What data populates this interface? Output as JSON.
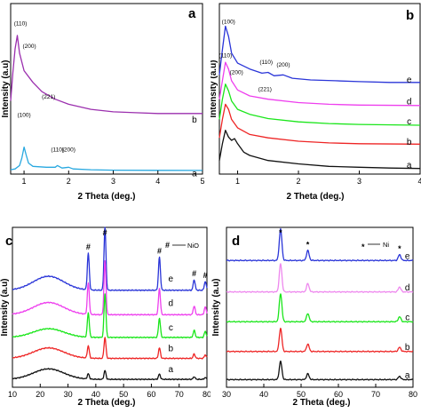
{
  "chart_data": [
    {
      "panel": "a",
      "type": "line",
      "xlabel": "2 Theta (deg.)",
      "ylabel": "Intensity (a.u)",
      "xlim": [
        0.7,
        5
      ],
      "xticks": [
        "1",
        "2",
        "3",
        "4",
        "5"
      ],
      "series": [
        {
          "name": "b",
          "color": "#9b2fae",
          "offset": 66,
          "points": [
            [
              0.7,
              18
            ],
            [
              0.75,
              52
            ],
            [
              0.8,
              80
            ],
            [
              0.85,
              96
            ],
            [
              0.9,
              75
            ],
            [
              1.0,
              54
            ],
            [
              1.2,
              40
            ],
            [
              1.4,
              29
            ],
            [
              1.7,
              20
            ],
            [
              2.0,
              14
            ],
            [
              2.5,
              8
            ],
            [
              3.0,
              5
            ],
            [
              3.5,
              4
            ],
            [
              4.0,
              3
            ],
            [
              4.5,
              3
            ],
            [
              5.0,
              3
            ]
          ]
        },
        {
          "name": "a",
          "color": "#28a8e0",
          "offset": 1,
          "points": [
            [
              0.7,
              1
            ],
            [
              0.8,
              2
            ],
            [
              0.9,
              6
            ],
            [
              0.95,
              15
            ],
            [
              1.0,
              28
            ],
            [
              1.05,
              18
            ],
            [
              1.1,
              9
            ],
            [
              1.2,
              5
            ],
            [
              1.5,
              4
            ],
            [
              1.7,
              4
            ],
            [
              1.75,
              6
            ],
            [
              1.85,
              3
            ],
            [
              2.0,
              4
            ],
            [
              2.1,
              2
            ],
            [
              2.5,
              1
            ],
            [
              3.0,
              0.5
            ],
            [
              4.0,
              0.3
            ],
            [
              5.0,
              0.2
            ]
          ]
        }
      ],
      "peaks": [
        {
          "text": "(110)",
          "x": 0.92,
          "y": 174
        },
        {
          "text": "(200)",
          "x": 1.12,
          "y": 147
        },
        {
          "text": "(221)",
          "x": 1.55,
          "y": 87
        },
        {
          "text": "(100)",
          "x": 1.0,
          "y": 65
        },
        {
          "text": "(110)",
          "x": 1.75,
          "y": 24
        },
        {
          "text": "(200)",
          "x": 2.0,
          "y": 24
        }
      ],
      "series_labels": [
        {
          "text": "b",
          "x": 4.82,
          "y": 58
        },
        {
          "text": "a",
          "x": 4.82,
          "y": -6
        }
      ]
    },
    {
      "panel": "b",
      "type": "line",
      "xlabel": "2 Theta (deg.)",
      "ylabel": "Intensity (a.u)",
      "xlim": [
        0.7,
        4
      ],
      "xticks": [
        "1",
        "2",
        "3",
        "4"
      ],
      "series": [
        {
          "name": "e",
          "color": "#2a35d8",
          "offset": 105,
          "points": [
            [
              0.7,
              10
            ],
            [
              0.75,
              40
            ],
            [
              0.8,
              68
            ],
            [
              0.85,
              56
            ],
            [
              0.9,
              36
            ],
            [
              1.0,
              24
            ],
            [
              1.2,
              17
            ],
            [
              1.4,
              12
            ],
            [
              1.5,
              13
            ],
            [
              1.6,
              9
            ],
            [
              1.75,
              10
            ],
            [
              1.9,
              6
            ],
            [
              2.2,
              4
            ],
            [
              2.6,
              3
            ],
            [
              3.0,
              2
            ],
            [
              3.5,
              1
            ],
            [
              4.0,
              1
            ]
          ]
        },
        {
          "name": "d",
          "color": "#ee3fee",
          "offset": 78,
          "points": [
            [
              0.7,
              8
            ],
            [
              0.75,
              30
            ],
            [
              0.8,
              52
            ],
            [
              0.85,
              44
            ],
            [
              0.9,
              30
            ],
            [
              1.0,
              19
            ],
            [
              1.2,
              12
            ],
            [
              1.5,
              8
            ],
            [
              2.0,
              4
            ],
            [
              2.5,
              2
            ],
            [
              3.0,
              1
            ],
            [
              4.0,
              0.5
            ]
          ]
        },
        {
          "name": "c",
          "color": "#1ae61a",
          "offset": 54,
          "points": [
            [
              0.7,
              8
            ],
            [
              0.75,
              32
            ],
            [
              0.8,
              50
            ],
            [
              0.85,
              42
            ],
            [
              0.9,
              30
            ],
            [
              1.0,
              20
            ],
            [
              1.2,
              14
            ],
            [
              1.5,
              9
            ],
            [
              2.0,
              5
            ],
            [
              2.5,
              3
            ],
            [
              3.0,
              2
            ],
            [
              4.0,
              1
            ]
          ]
        },
        {
          "name": "b",
          "color": "#ee2525",
          "offset": 32,
          "points": [
            [
              0.7,
              8
            ],
            [
              0.75,
              30
            ],
            [
              0.8,
              48
            ],
            [
              0.85,
              42
            ],
            [
              0.9,
              30
            ],
            [
              1.0,
              20
            ],
            [
              1.2,
              12
            ],
            [
              1.5,
              8
            ],
            [
              2.0,
              4
            ],
            [
              2.5,
              2
            ],
            [
              3.0,
              1
            ],
            [
              4.0,
              0.5
            ]
          ]
        },
        {
          "name": "a",
          "color": "#111111",
          "offset": 3,
          "points": [
            [
              0.7,
              10
            ],
            [
              0.75,
              30
            ],
            [
              0.8,
              46
            ],
            [
              0.85,
              38
            ],
            [
              0.9,
              34
            ],
            [
              0.95,
              36
            ],
            [
              1.0,
              30
            ],
            [
              1.1,
              20
            ],
            [
              1.2,
              16
            ],
            [
              1.5,
              10
            ],
            [
              2.0,
              6
            ],
            [
              2.5,
              3
            ],
            [
              3.0,
              2
            ],
            [
              3.5,
              1
            ],
            [
              4.0,
              0.5
            ]
          ]
        }
      ],
      "peaks": [
        {
          "text": "(100)",
          "x": 0.85,
          "y": 176
        },
        {
          "text": "(110)",
          "x": 0.8,
          "y": 136
        },
        {
          "text": "(200)",
          "x": 0.98,
          "y": 116
        },
        {
          "text": "(221)",
          "x": 1.45,
          "y": 96
        },
        {
          "text": "(110)",
          "x": 1.47,
          "y": 128
        },
        {
          "text": "(200)",
          "x": 1.75,
          "y": 125
        }
      ],
      "series_labels": [
        {
          "text": "e",
          "x": 3.82,
          "y": 106
        },
        {
          "text": "d",
          "x": 3.82,
          "y": 80
        },
        {
          "text": "c",
          "x": 3.82,
          "y": 56
        },
        {
          "text": "b",
          "x": 3.82,
          "y": 32
        },
        {
          "text": "a",
          "x": 3.82,
          "y": 4
        }
      ]
    },
    {
      "panel": "c",
      "type": "line",
      "xlabel": "2 Theta (deg.)",
      "ylabel": "Intensity (a.u)",
      "xlim": [
        10,
        80
      ],
      "xticks": [
        "10",
        "20",
        "30",
        "40",
        "50",
        "60",
        "70",
        "80"
      ],
      "legend": {
        "symbol": "#",
        "text": "NiO",
        "placement": "top-right"
      },
      "marker_symbol": "#",
      "marker_positions": [
        37.3,
        43.3,
        62.9,
        75.4,
        79.4
      ],
      "series": [
        {
          "name": "e",
          "color": "#2a35d8",
          "offset": 108,
          "hump": 16,
          "peaks": [
            42,
            72,
            38,
            12,
            10
          ]
        },
        {
          "name": "d",
          "color": "#ee3fee",
          "offset": 80,
          "hump": 14,
          "peaks": [
            36,
            62,
            30,
            10,
            9
          ]
        },
        {
          "name": "c",
          "color": "#1ae61a",
          "offset": 54,
          "hump": 10,
          "peaks": [
            28,
            50,
            22,
            8,
            7
          ]
        },
        {
          "name": "b",
          "color": "#ee2525",
          "offset": 30,
          "hump": 12,
          "peaks": [
            14,
            24,
            12,
            5,
            4
          ]
        },
        {
          "name": "a",
          "color": "#111111",
          "offset": 6,
          "hump": 12,
          "peaks": [
            6,
            10,
            6,
            3,
            2
          ]
        }
      ],
      "series_labels": [
        {
          "text": "e",
          "x": 67,
          "y": 118
        },
        {
          "text": "d",
          "x": 67,
          "y": 90
        },
        {
          "text": "c",
          "x": 67,
          "y": 62
        },
        {
          "text": "b",
          "x": 67,
          "y": 38
        },
        {
          "text": "a",
          "x": 67,
          "y": 14
        }
      ]
    },
    {
      "panel": "d",
      "type": "line",
      "xlabel": "2 Theta (deg.)",
      "ylabel": "Intensity (a.u)",
      "xlim": [
        30,
        80
      ],
      "xticks": [
        "30",
        "40",
        "50",
        "60",
        "70",
        "80"
      ],
      "legend": {
        "symbol": "*",
        "text": "Ni",
        "placement": "top-right"
      },
      "marker_symbol": "*",
      "marker_positions": [
        44.5,
        51.8,
        76.4
      ],
      "series": [
        {
          "name": "e",
          "color": "#2a35d8",
          "offset": 150,
          "peaks": [
            38,
            12,
            7
          ]
        },
        {
          "name": "d",
          "color": "#ee88ee",
          "offset": 112,
          "peaks": [
            34,
            10,
            6
          ]
        },
        {
          "name": "c",
          "color": "#1ae61a",
          "offset": 76,
          "peaks": [
            34,
            10,
            6
          ]
        },
        {
          "name": "b",
          "color": "#ee2525",
          "offset": 40,
          "peaks": [
            28,
            9,
            5
          ]
        },
        {
          "name": "a",
          "color": "#111111",
          "offset": 6,
          "peaks": [
            22,
            7,
            4
          ]
        }
      ],
      "series_labels": [
        {
          "text": "e",
          "x": 78.5,
          "y": 152
        },
        {
          "text": "d",
          "x": 78.5,
          "y": 114
        },
        {
          "text": "c",
          "x": 78.5,
          "y": 78
        },
        {
          "text": "b",
          "x": 78.5,
          "y": 42
        },
        {
          "text": "a",
          "x": 78.5,
          "y": 8
        }
      ]
    }
  ]
}
